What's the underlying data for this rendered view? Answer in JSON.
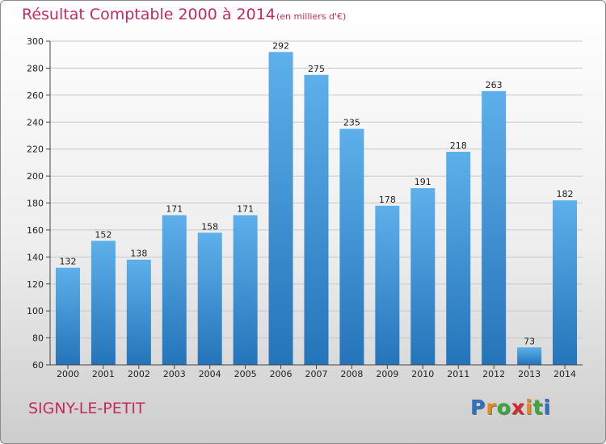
{
  "header": {
    "title": "Résultat Comptable 2000 à 2014",
    "subtitle": "(en milliers d'€)"
  },
  "footer": {
    "town": "SIGNY-LE-PETIT",
    "logo_letters": [
      "P",
      "r",
      "o",
      "x",
      "i",
      "t",
      "i"
    ]
  },
  "colors": {
    "bar_light": "#5db0ea",
    "bar_dark": "#2474ba",
    "title": "#c42a5c",
    "logo": [
      "#2d6fc0",
      "#e8891c",
      "#3ba83b",
      "#d42a2a",
      "#e8891c",
      "#3ba83b",
      "#2d6fc0"
    ]
  },
  "chart_data": {
    "type": "bar",
    "title": "Résultat Comptable 2000 à 2014",
    "subtitle": "(en milliers d'€)",
    "xlabel": "",
    "ylabel": "",
    "categories": [
      "2000",
      "2001",
      "2002",
      "2003",
      "2004",
      "2005",
      "2006",
      "2007",
      "2008",
      "2009",
      "2010",
      "2011",
      "2012",
      "2013",
      "2014"
    ],
    "values": [
      132,
      152,
      138,
      171,
      158,
      171,
      292,
      275,
      235,
      178,
      191,
      218,
      263,
      73,
      182
    ],
    "ylim": [
      60,
      300
    ],
    "yticks": [
      60,
      80,
      100,
      120,
      140,
      160,
      180,
      200,
      220,
      240,
      260,
      280,
      300
    ],
    "grid": true,
    "legend": "none"
  }
}
